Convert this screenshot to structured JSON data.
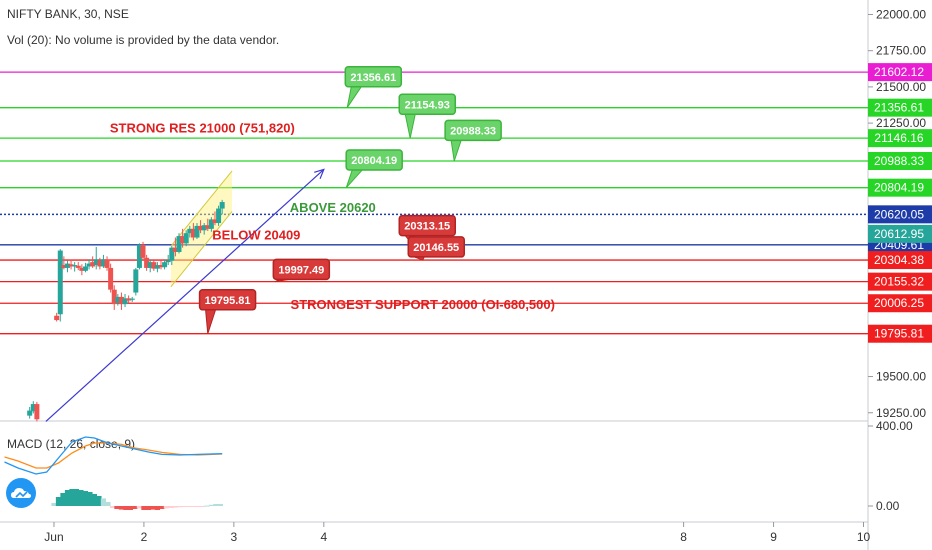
{
  "header": {
    "symbol_line": "NIFTY BANK, 30, NSE",
    "volume_line": "Vol (20): No volume is provided by the data vendor."
  },
  "logo": "tradingview-cloud-icon",
  "chart_data": {
    "type": "candlestick",
    "title": "NIFTY BANK, 30, NSE",
    "price_axis": {
      "ticks": [
        19250,
        19500,
        19750,
        20000,
        20250,
        20500,
        20750,
        21000,
        21250,
        21500,
        21750,
        22000
      ],
      "tick_labels": [
        "19250.00",
        "19500.00",
        "",
        "",
        "",
        "",
        "",
        "",
        "21250.00",
        "21500.00",
        "21750.00",
        "22000.00"
      ],
      "range": [
        19200,
        22100
      ]
    },
    "time_axis": {
      "ticks": [
        1,
        2,
        3,
        4,
        8,
        9,
        10
      ],
      "labels": [
        "Jun",
        "2",
        "3",
        "4",
        "8",
        "9",
        "10"
      ],
      "range": [
        0.4,
        10.05
      ]
    },
    "candles": [
      {
        "t": 0.73,
        "o": 19230,
        "h": 19290,
        "l": 19210,
        "c": 19265
      },
      {
        "t": 0.77,
        "o": 19260,
        "h": 19330,
        "l": 19245,
        "c": 19310
      },
      {
        "t": 0.81,
        "o": 19310,
        "h": 19325,
        "l": 19190,
        "c": 19205
      },
      {
        "t": 1.03,
        "o": 19920,
        "h": 19940,
        "l": 19880,
        "c": 19890
      },
      {
        "t": 1.07,
        "o": 19930,
        "h": 20380,
        "l": 19880,
        "c": 20370
      },
      {
        "t": 1.11,
        "o": 20270,
        "h": 20330,
        "l": 20240,
        "c": 20250
      },
      {
        "t": 1.15,
        "o": 20250,
        "h": 20300,
        "l": 20220,
        "c": 20280
      },
      {
        "t": 1.19,
        "o": 20275,
        "h": 20305,
        "l": 20240,
        "c": 20260
      },
      {
        "t": 1.23,
        "o": 20260,
        "h": 20290,
        "l": 20225,
        "c": 20270
      },
      {
        "t": 1.27,
        "o": 20265,
        "h": 20290,
        "l": 20235,
        "c": 20250
      },
      {
        "t": 1.31,
        "o": 20250,
        "h": 20275,
        "l": 20200,
        "c": 20230
      },
      {
        "t": 1.35,
        "o": 20230,
        "h": 20285,
        "l": 20220,
        "c": 20260
      },
      {
        "t": 1.39,
        "o": 20260,
        "h": 20310,
        "l": 20240,
        "c": 20280
      },
      {
        "t": 1.43,
        "o": 20290,
        "h": 20330,
        "l": 20250,
        "c": 20260
      },
      {
        "t": 1.47,
        "o": 20270,
        "h": 20395,
        "l": 20240,
        "c": 20310
      },
      {
        "t": 1.51,
        "o": 20300,
        "h": 20320,
        "l": 20240,
        "c": 20260
      },
      {
        "t": 1.55,
        "o": 20260,
        "h": 20340,
        "l": 20250,
        "c": 20310
      },
      {
        "t": 1.59,
        "o": 20310,
        "h": 20330,
        "l": 20230,
        "c": 20250
      },
      {
        "t": 1.63,
        "o": 20250,
        "h": 20280,
        "l": 20080,
        "c": 20100
      },
      {
        "t": 1.67,
        "o": 20100,
        "h": 20130,
        "l": 19960,
        "c": 20000
      },
      {
        "t": 1.71,
        "o": 20010,
        "h": 20070,
        "l": 19990,
        "c": 20050
      },
      {
        "t": 1.75,
        "o": 20050,
        "h": 20080,
        "l": 19960,
        "c": 20000
      },
      {
        "t": 1.79,
        "o": 20000,
        "h": 20070,
        "l": 19980,
        "c": 20040
      },
      {
        "t": 1.83,
        "o": 20040,
        "h": 20060,
        "l": 20010,
        "c": 20025
      },
      {
        "t": 1.87,
        "o": 20030,
        "h": 20050,
        "l": 20015,
        "c": 20038
      },
      {
        "t": 1.91,
        "o": 20080,
        "h": 20250,
        "l": 20060,
        "c": 20240
      },
      {
        "t": 1.95,
        "o": 20250,
        "h": 20420,
        "l": 20240,
        "c": 20410
      },
      {
        "t": 1.99,
        "o": 20410,
        "h": 20430,
        "l": 20300,
        "c": 20320
      },
      {
        "t": 2.03,
        "o": 20320,
        "h": 20340,
        "l": 20230,
        "c": 20250
      },
      {
        "t": 2.07,
        "o": 20250,
        "h": 20310,
        "l": 20220,
        "c": 20290
      },
      {
        "t": 2.11,
        "o": 20290,
        "h": 20300,
        "l": 20230,
        "c": 20245
      },
      {
        "t": 2.15,
        "o": 20245,
        "h": 20290,
        "l": 20220,
        "c": 20270
      },
      {
        "t": 2.19,
        "o": 20270,
        "h": 20300,
        "l": 20240,
        "c": 20255
      },
      {
        "t": 2.23,
        "o": 20255,
        "h": 20310,
        "l": 20240,
        "c": 20290
      },
      {
        "t": 2.27,
        "o": 20290,
        "h": 20340,
        "l": 20270,
        "c": 20300
      },
      {
        "t": 2.31,
        "o": 20300,
        "h": 20400,
        "l": 20270,
        "c": 20390
      },
      {
        "t": 2.35,
        "o": 20390,
        "h": 20460,
        "l": 20330,
        "c": 20360
      },
      {
        "t": 2.39,
        "o": 20360,
        "h": 20490,
        "l": 20350,
        "c": 20470
      },
      {
        "t": 2.43,
        "o": 20470,
        "h": 20520,
        "l": 20390,
        "c": 20420
      },
      {
        "t": 2.47,
        "o": 20420,
        "h": 20510,
        "l": 20400,
        "c": 20490
      },
      {
        "t": 2.51,
        "o": 20490,
        "h": 20540,
        "l": 20460,
        "c": 20520
      },
      {
        "t": 2.55,
        "o": 20520,
        "h": 20560,
        "l": 20440,
        "c": 20460
      },
      {
        "t": 2.59,
        "o": 20460,
        "h": 20560,
        "l": 20450,
        "c": 20540
      },
      {
        "t": 2.63,
        "o": 20540,
        "h": 20580,
        "l": 20490,
        "c": 20510
      },
      {
        "t": 2.67,
        "o": 20510,
        "h": 20560,
        "l": 20480,
        "c": 20545
      },
      {
        "t": 2.71,
        "o": 20545,
        "h": 20590,
        "l": 20505,
        "c": 20520
      },
      {
        "t": 2.75,
        "o": 20520,
        "h": 20600,
        "l": 20500,
        "c": 20585
      },
      {
        "t": 2.79,
        "o": 20585,
        "h": 20640,
        "l": 20545,
        "c": 20560
      },
      {
        "t": 2.83,
        "o": 20560,
        "h": 20680,
        "l": 20540,
        "c": 20660
      },
      {
        "t": 2.87,
        "o": 20660,
        "h": 20720,
        "l": 20620,
        "c": 20705
      }
    ],
    "horizontal_levels": [
      {
        "price": 21602.12,
        "label": "21602.12",
        "color": "#e91ed3"
      },
      {
        "price": 21356.61,
        "label": "21356.61",
        "color": "#26d526"
      },
      {
        "price": 21146.16,
        "label": "21146.16",
        "color": "#26d526"
      },
      {
        "price": 20988.33,
        "label": "20988.33",
        "color": "#26d526"
      },
      {
        "price": 20804.19,
        "label": "20804.19",
        "color": "#26d526"
      },
      {
        "price": 20620.05,
        "label": "20620.05",
        "color": "#1e3ca8",
        "dotted": true
      },
      {
        "price": 20409.61,
        "label": "20409.61",
        "color": "#1e3ca8"
      },
      {
        "price": 20304.38,
        "label": "20304.38",
        "color": "#f01e1e"
      },
      {
        "price": 20155.32,
        "label": "20155.32",
        "color": "#f01e1e"
      },
      {
        "price": 20006.25,
        "label": "20006.25",
        "color": "#f01e1e"
      },
      {
        "price": 19795.81,
        "label": "19795.81",
        "color": "#f01e1e"
      }
    ],
    "last_price": {
      "label": "20612.95",
      "color": "#26a69a",
      "price": 20485
    },
    "annotations": [
      {
        "text": "STRONG RES 21000 (751,820)",
        "t": 2.65,
        "price": 21220,
        "color": "#e02020"
      },
      {
        "text": "ABOVE 20620",
        "t": 4.1,
        "price": 20670,
        "color": "#3a9a3a"
      },
      {
        "text": "BELOW 20409",
        "t": 3.25,
        "price": 20480,
        "color": "#e02020"
      },
      {
        "text": "STRONGEST SUPPORT 20000 (OI-680,500)",
        "t": 5.1,
        "price": 20000,
        "color": "#e02020"
      }
    ],
    "callouts": [
      {
        "text": "21356.61",
        "kind": "green",
        "t": 4.55,
        "price": 21570,
        "anchor_t": 4.26,
        "anchor_price": 21356.61
      },
      {
        "text": "21154.93",
        "kind": "green",
        "t": 5.15,
        "price": 21380,
        "anchor_t": 4.96,
        "anchor_price": 21146.16
      },
      {
        "text": "20988.33",
        "kind": "green",
        "t": 5.66,
        "price": 21200,
        "anchor_t": 5.45,
        "anchor_price": 20988.33
      },
      {
        "text": "20804.19",
        "kind": "green",
        "t": 4.56,
        "price": 20995,
        "anchor_t": 4.25,
        "anchor_price": 20804.19
      },
      {
        "text": "20313.15",
        "kind": "red",
        "t": 5.15,
        "price": 20542,
        "anchor_t": 4.99,
        "anchor_price": 20409.61
      },
      {
        "text": "20146.55",
        "kind": "red",
        "t": 5.25,
        "price": 20395,
        "anchor_t": 5.1,
        "anchor_price": 20304.38
      },
      {
        "text": "19997.49",
        "kind": "red",
        "t": 3.75,
        "price": 20240,
        "anchor_t": 3.46,
        "anchor_price": 20155.32
      },
      {
        "text": "19795.81",
        "kind": "red",
        "t": 2.93,
        "price": 20030,
        "anchor_t": 2.71,
        "anchor_price": 19795.81
      }
    ],
    "trend_arrow": {
      "from": {
        "t": 0.91,
        "price": 19190
      },
      "to": {
        "t": 4.0,
        "price": 20930
      },
      "color": "#3a3ad0"
    },
    "channel": {
      "t0": 2.3,
      "t1": 2.98,
      "bottom0": 20120,
      "top0": 20400,
      "bottom1": 20640,
      "top1": 20920
    },
    "macd": {
      "label": "MACD (12, 26, close, 9)",
      "ticks": [
        0,
        400
      ],
      "tick_labels": [
        "0.00",
        "400.00"
      ],
      "range": [
        -80,
        420
      ],
      "macd_line": [
        [
          0.45,
          220
        ],
        [
          0.6,
          190
        ],
        [
          0.8,
          160
        ],
        [
          0.92,
          170
        ],
        [
          1.05,
          240
        ],
        [
          1.2,
          320
        ],
        [
          1.35,
          345
        ],
        [
          1.45,
          340
        ],
        [
          1.6,
          315
        ],
        [
          1.75,
          300
        ],
        [
          1.9,
          285
        ],
        [
          2.05,
          270
        ],
        [
          2.2,
          258
        ],
        [
          2.4,
          255
        ],
        [
          2.6,
          258
        ],
        [
          2.87,
          262
        ]
      ],
      "signal_line": [
        [
          0.45,
          245
        ],
        [
          0.6,
          225
        ],
        [
          0.8,
          190
        ],
        [
          0.92,
          190
        ],
        [
          1.05,
          215
        ],
        [
          1.2,
          265
        ],
        [
          1.35,
          300
        ],
        [
          1.45,
          315
        ],
        [
          1.6,
          315
        ],
        [
          1.75,
          308
        ],
        [
          1.9,
          290
        ],
        [
          2.05,
          280
        ],
        [
          2.2,
          268
        ],
        [
          2.4,
          258
        ],
        [
          2.6,
          255
        ],
        [
          2.87,
          260
        ]
      ],
      "histogram": [
        {
          "t": 1.0,
          "v": 15
        },
        {
          "t": 1.05,
          "v": 45
        },
        {
          "t": 1.1,
          "v": 65
        },
        {
          "t": 1.15,
          "v": 80
        },
        {
          "t": 1.2,
          "v": 85
        },
        {
          "t": 1.25,
          "v": 85
        },
        {
          "t": 1.3,
          "v": 80
        },
        {
          "t": 1.35,
          "v": 75
        },
        {
          "t": 1.4,
          "v": 70
        },
        {
          "t": 1.45,
          "v": 60
        },
        {
          "t": 1.5,
          "v": 50
        },
        {
          "t": 1.55,
          "v": 38
        },
        {
          "t": 1.6,
          "v": 20
        },
        {
          "t": 1.65,
          "v": -10
        },
        {
          "t": 1.7,
          "v": -15
        },
        {
          "t": 1.75,
          "v": -18
        },
        {
          "t": 1.8,
          "v": -20
        },
        {
          "t": 1.85,
          "v": -20
        },
        {
          "t": 1.9,
          "v": -15
        },
        {
          "t": 1.95,
          "v": -12
        },
        {
          "t": 2.0,
          "v": -20
        },
        {
          "t": 2.05,
          "v": -20
        },
        {
          "t": 2.1,
          "v": -18
        },
        {
          "t": 2.15,
          "v": -20
        },
        {
          "t": 2.2,
          "v": -15
        },
        {
          "t": 2.25,
          "v": -12
        },
        {
          "t": 2.3,
          "v": -10
        },
        {
          "t": 2.35,
          "v": -8
        },
        {
          "t": 2.4,
          "v": -6
        },
        {
          "t": 2.45,
          "v": -4
        },
        {
          "t": 2.5,
          "v": -3
        },
        {
          "t": 2.55,
          "v": -2
        },
        {
          "t": 2.6,
          "v": -2
        },
        {
          "t": 2.65,
          "v": -1
        },
        {
          "t": 2.7,
          "v": 2
        },
        {
          "t": 2.75,
          "v": 6
        },
        {
          "t": 2.8,
          "v": 10
        },
        {
          "t": 2.85,
          "v": 10
        }
      ]
    }
  }
}
